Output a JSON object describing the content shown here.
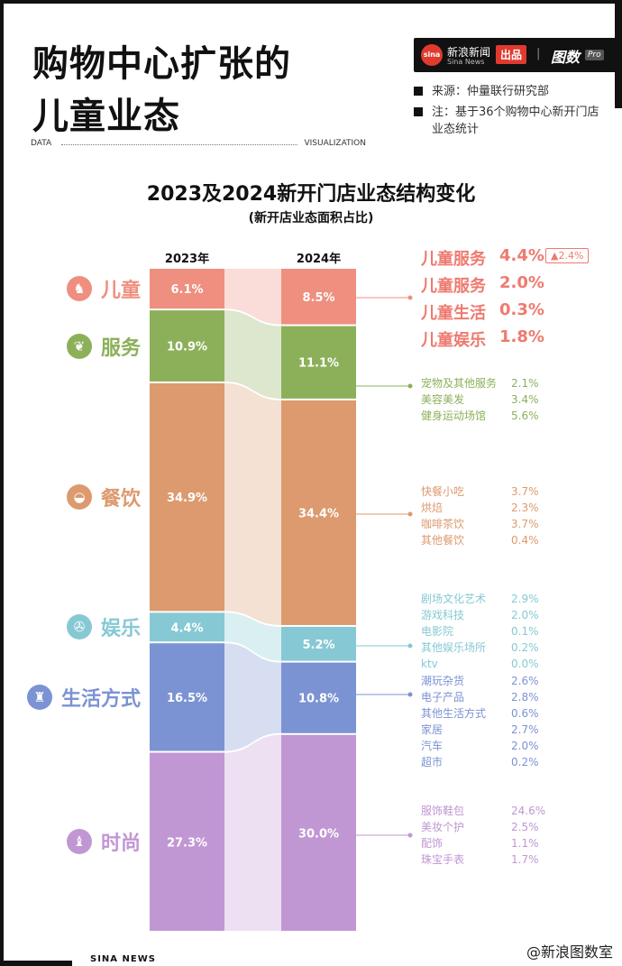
{
  "header": {
    "title_line1": "购物中心扩张的",
    "title_line2": "儿童业态",
    "brand_name": "新浪新闻",
    "brand_sub": "Sina News",
    "brand_publish": "出品",
    "brand_tushu": "图数",
    "brand_pro": "Pro",
    "source_note": "来源：仲量联行研究部",
    "method_note": "注：基于36个购物中心新开门店业态统计",
    "data_label": "DATA",
    "viz_label": "VISUALIZATION"
  },
  "footer": {
    "left": "SINA NEWS",
    "right": "@新浪图数室"
  },
  "chart_data": {
    "type": "bar",
    "title": "2023及2024新开门店业态结构变化",
    "subtitle": "(新开店业态面积占比)",
    "unit": "%",
    "categories": [
      "2023年",
      "2024年"
    ],
    "series": [
      {
        "name": "儿童",
        "values": [
          6.1,
          8.5
        ],
        "labels": [
          "6.1%",
          "8.5%"
        ],
        "color": "#ee8f7f",
        "icon": "rocking-horse-icon",
        "glyph": "♞"
      },
      {
        "name": "服务",
        "values": [
          10.9,
          11.1
        ],
        "labels": [
          "10.9%",
          "11.1%"
        ],
        "color": "#8cb05a",
        "icon": "leaf-icon",
        "glyph": "❦"
      },
      {
        "name": "餐饮",
        "values": [
          34.9,
          34.4
        ],
        "labels": [
          "34.9%",
          "34.4%"
        ],
        "color": "#dc9a6e",
        "icon": "food-cloche-icon",
        "glyph": "◒"
      },
      {
        "name": "娱乐",
        "values": [
          4.4,
          5.2
        ],
        "labels": [
          "4.4%",
          "5.2%"
        ],
        "color": "#86c9d4",
        "icon": "film-reel-icon",
        "glyph": "✇"
      },
      {
        "name": "生活方式",
        "values": [
          16.5,
          10.8
        ],
        "labels": [
          "16.5%",
          "10.8%"
        ],
        "color": "#7b93d3",
        "icon": "shirt-icon",
        "glyph": "♜"
      },
      {
        "name": "时尚",
        "values": [
          27.3,
          30.0
        ],
        "labels": [
          "27.3%",
          "30.0%"
        ],
        "color": "#c197d3",
        "icon": "high-heel-icon",
        "glyph": "♝"
      }
    ],
    "breakdowns": [
      {
        "category": "儿童",
        "headline": {
          "name": "儿童服务",
          "value": "4.4%",
          "change": "▲2.4%"
        },
        "items": [
          {
            "name": "儿童服务",
            "value": "2.0%"
          },
          {
            "name": "儿童生活",
            "value": "0.3%"
          },
          {
            "name": "儿童娱乐",
            "value": "1.8%"
          }
        ]
      },
      {
        "category": "服务",
        "items": [
          {
            "name": "宠物及其他服务",
            "value": "2.1%"
          },
          {
            "name": "美容美发",
            "value": "3.4%"
          },
          {
            "name": "健身运动场馆",
            "value": "5.6%"
          }
        ]
      },
      {
        "category": "餐饮",
        "items": [
          {
            "name": "快餐小吃",
            "value": "3.7%"
          },
          {
            "name": "烘焙",
            "value": "2.3%"
          },
          {
            "name": "咖啡茶饮",
            "value": "3.7%"
          },
          {
            "name": "其他餐饮",
            "value": "0.4%"
          }
        ]
      },
      {
        "category": "娱乐",
        "items": [
          {
            "name": "剧场文化艺术",
            "value": "2.9%"
          },
          {
            "name": "游戏科技",
            "value": "2.0%"
          },
          {
            "name": "电影院",
            "value": "0.1%"
          },
          {
            "name": "其他娱乐场所",
            "value": "0.2%"
          },
          {
            "name": "ktv",
            "value": "0.0%"
          }
        ]
      },
      {
        "category": "生活方式",
        "items": [
          {
            "name": "潮玩杂货",
            "value": "2.6%"
          },
          {
            "name": "电子产品",
            "value": "2.8%"
          },
          {
            "name": "其他生活方式",
            "value": "0.6%"
          },
          {
            "name": "家居",
            "value": "2.7%"
          },
          {
            "name": "汽车",
            "value": "2.0%"
          },
          {
            "name": "超市",
            "value": "0.2%"
          }
        ]
      },
      {
        "category": "时尚",
        "items": [
          {
            "name": "服饰鞋包",
            "value": "24.6%"
          },
          {
            "name": "美妆个护",
            "value": "2.5%"
          },
          {
            "name": "配饰",
            "value": "1.1%"
          },
          {
            "name": "珠宝手表",
            "value": "1.7%"
          }
        ]
      }
    ]
  }
}
